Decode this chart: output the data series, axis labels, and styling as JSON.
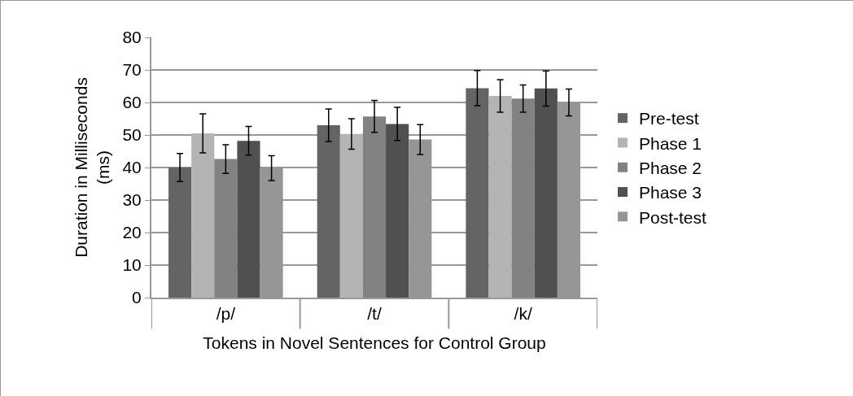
{
  "chart_data": {
    "type": "bar",
    "xlabel": "Tokens in Novel Sentences for Control Group",
    "ylabel": "Duration in Milliseconds (ms)",
    "categories": [
      "/p/",
      "/t/",
      "/k/"
    ],
    "series": [
      {
        "name": "Pre-test",
        "color": "#646464",
        "values": [
          40,
          53,
          64.4
        ],
        "errors": [
          4.3,
          5,
          5.4
        ]
      },
      {
        "name": "Phase 1",
        "color": "#b4b4b4",
        "values": [
          50.5,
          50.3,
          62
        ],
        "errors": [
          6,
          4.7,
          5
        ]
      },
      {
        "name": "Phase 2",
        "color": "#828282",
        "values": [
          42.6,
          55.7,
          61.2
        ],
        "errors": [
          4.4,
          4.9,
          4.2
        ]
      },
      {
        "name": "Phase 3",
        "color": "#505050",
        "values": [
          48.2,
          53.4,
          64.3
        ],
        "errors": [
          4.4,
          5.1,
          5.4
        ]
      },
      {
        "name": "Post-test",
        "color": "#969696",
        "values": [
          39.8,
          48.6,
          60
        ],
        "errors": [
          3.8,
          4.6,
          4.1
        ]
      }
    ],
    "ylim": [
      0,
      80
    ],
    "yticks": [
      0,
      10,
      20,
      30,
      40,
      50,
      60,
      70,
      80
    ],
    "grid": "y",
    "legend": "right"
  }
}
